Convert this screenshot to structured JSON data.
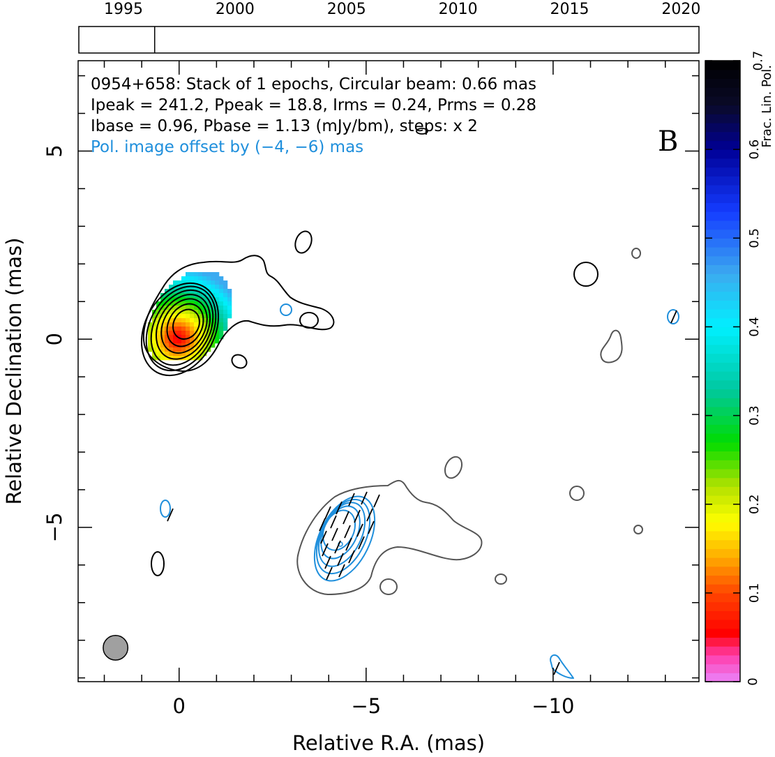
{
  "chart_data": {
    "type": "contour",
    "source": "0954+658",
    "header_lines": [
      "0954+658: Stack of 1 epochs, Circular beam: 0.66 mas",
      "Ipeak = 241.2, Ppeak = 18.8, Irms = 0.24, Prms = 0.28",
      "Ibase = 0.96, Pbase = 1.13 (mJy/bm), steps: x 2"
    ],
    "offset_note": "Pol. image offset by (−4, −6) mas",
    "panel_letter": "B",
    "xlabel": "Relative R.A. (mas)",
    "ylabel": "Relative Declination (mas)",
    "xlim": [
      2.7,
      -13.9
    ],
    "ylim": [
      -9.1,
      7.4
    ],
    "xticks": [
      0,
      -5,
      -10
    ],
    "xtick_labels": [
      "0",
      "−5",
      "−10"
    ],
    "yticks": [
      5,
      0,
      -5
    ],
    "ytick_labels": [
      "5",
      "0",
      "−5"
    ],
    "timeline": {
      "range": [
        1993,
        2020.8
      ],
      "ticks": [
        1995,
        2000,
        2005,
        2010,
        2015,
        2020
      ],
      "tick_labels": [
        "1995",
        "2000",
        "2005",
        "2010",
        "2015",
        "2020"
      ],
      "epochs": [
        1996.4
      ]
    },
    "colorbar": {
      "label": "Frac. Lin. Pol.",
      "range": [
        0,
        0.7
      ],
      "ticks": [
        0,
        0.1,
        0.2,
        0.3,
        0.4,
        0.5,
        0.6,
        0.7
      ],
      "tick_labels": [
        "0",
        "0.1",
        "0.2",
        "0.3",
        "0.4",
        "0.5",
        "0.6",
        "0.7"
      ]
    },
    "beam": {
      "ra": 1.7,
      "dec": -8.2,
      "diameter": 0.66
    },
    "core": {
      "ra": 0.0,
      "dec": 0.0
    },
    "series": [
      {
        "name": "Stokes I contours",
        "center": [
          -0.5,
          0.3
        ],
        "color": "#000000"
      },
      {
        "name": "offset Stokes I contours",
        "center": [
          -4.6,
          -5.7
        ],
        "color": "#555555"
      },
      {
        "name": "polarized intensity contours",
        "center": [
          -4.5,
          -5.6
        ],
        "color": "#1f8fdc"
      }
    ]
  },
  "colors": {
    "stokes_i": "#000000",
    "offset_i": "#555555",
    "pol": "#1f8fdc",
    "beam": "#a0a0a0"
  }
}
